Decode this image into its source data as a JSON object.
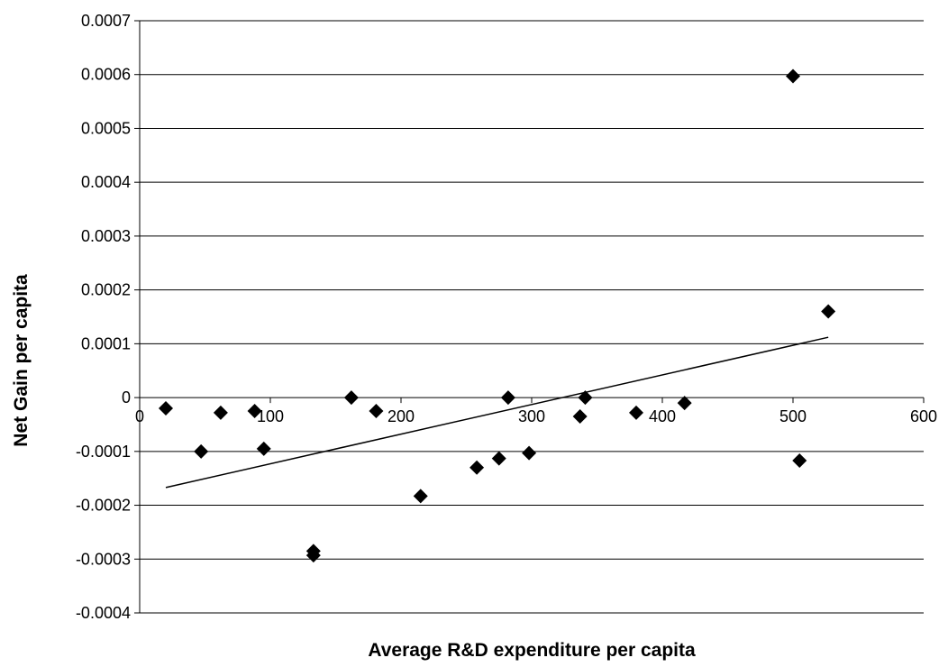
{
  "chart_data": {
    "type": "scatter",
    "title": "",
    "xlabel": "Average R&D expenditure per capita",
    "ylabel": "Net Gain per capita",
    "xlim": [
      0,
      600
    ],
    "ylim": [
      -0.0004,
      0.0007
    ],
    "x_ticks": [
      "0",
      "100",
      "200",
      "300",
      "400",
      "500",
      "600"
    ],
    "y_ticks": [
      "-0.0004",
      "-0.0003",
      "-0.0002",
      "-0.0001",
      "0",
      "0.0001",
      "0.0002",
      "0.0003",
      "0.0004",
      "0.0005",
      "0.0006",
      "0.0007"
    ],
    "grid": "horizontal",
    "legend": "none",
    "marker_color": "#000000",
    "points": [
      {
        "x": 20,
        "y": -2e-05
      },
      {
        "x": 47,
        "y": -0.0001
      },
      {
        "x": 62,
        "y": -2.8e-05
      },
      {
        "x": 88,
        "y": -2.5e-05
      },
      {
        "x": 95,
        "y": -9.5e-05
      },
      {
        "x": 133,
        "y": -0.000285
      },
      {
        "x": 133,
        "y": -0.000293
      },
      {
        "x": 162,
        "y": 0.0
      },
      {
        "x": 181,
        "y": -2.5e-05
      },
      {
        "x": 215,
        "y": -0.000183
      },
      {
        "x": 258,
        "y": -0.00013
      },
      {
        "x": 275,
        "y": -0.000113
      },
      {
        "x": 282,
        "y": 0.0
      },
      {
        "x": 298,
        "y": -0.000103
      },
      {
        "x": 337,
        "y": -3.5e-05
      },
      {
        "x": 341,
        "y": 0.0
      },
      {
        "x": 380,
        "y": -2.8e-05
      },
      {
        "x": 417,
        "y": -1e-05
      },
      {
        "x": 500,
        "y": 0.000597
      },
      {
        "x": 505,
        "y": -0.000117
      },
      {
        "x": 527,
        "y": 0.00016
      }
    ],
    "trendline": {
      "x": [
        20,
        527
      ],
      "y": [
        -0.000167,
        0.000112
      ]
    }
  }
}
